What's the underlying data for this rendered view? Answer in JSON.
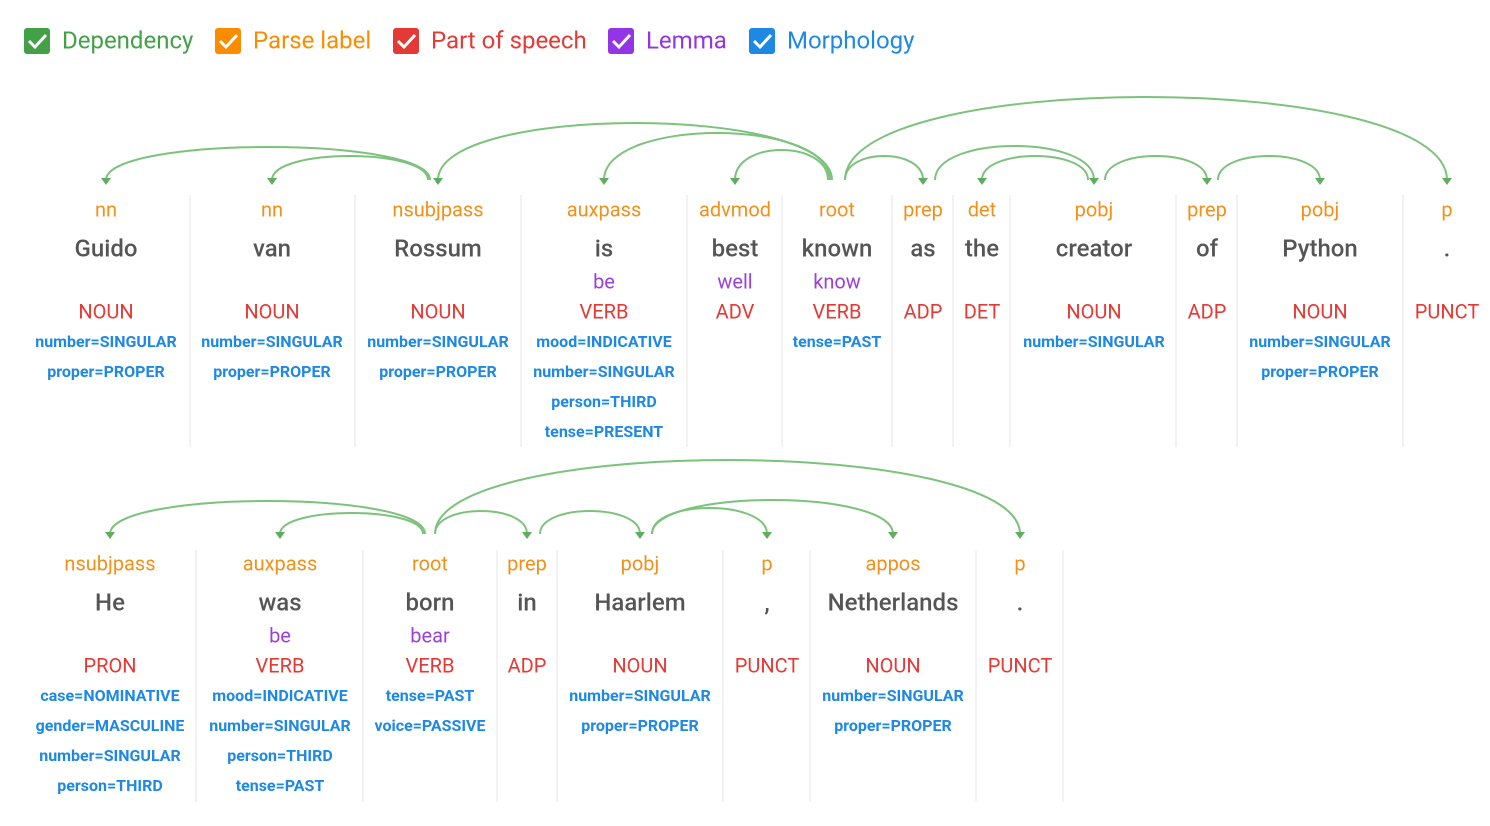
{
  "toolbar": {
    "options": [
      "Dependency",
      "Parse label",
      "Part of speech",
      "Lemma",
      "Morphology"
    ]
  },
  "sentences": [
    {
      "tokens": [
        {
          "label": "nn",
          "word": "Guido",
          "pos": "NOUN",
          "morphology": [
            "number=SINGULAR",
            "proper=PROPER"
          ]
        },
        {
          "label": "nn",
          "word": "van",
          "pos": "NOUN",
          "morphology": [
            "number=SINGULAR",
            "proper=PROPER"
          ]
        },
        {
          "label": "nsubjpass",
          "word": "Rossum",
          "pos": "NOUN",
          "morphology": [
            "number=SINGULAR",
            "proper=PROPER"
          ]
        },
        {
          "label": "auxpass",
          "word": "is",
          "lemma": "be",
          "pos": "VERB",
          "morphology": [
            "mood=INDICATIVE",
            "number=SINGULAR",
            "person=THIRD",
            "tense=PRESENT"
          ]
        },
        {
          "label": "advmod",
          "word": "best",
          "lemma": "well",
          "pos": "ADV",
          "morphology": []
        },
        {
          "label": "root",
          "word": "known",
          "lemma": "know",
          "pos": "VERB",
          "morphology": [
            "tense=PAST"
          ]
        },
        {
          "label": "prep",
          "word": "as",
          "pos": "ADP",
          "morphology": []
        },
        {
          "label": "det",
          "word": "the",
          "pos": "DET",
          "morphology": []
        },
        {
          "label": "pobj",
          "word": "creator",
          "pos": "NOUN",
          "morphology": [
            "number=SINGULAR"
          ]
        },
        {
          "label": "prep",
          "word": "of",
          "pos": "ADP",
          "morphology": []
        },
        {
          "label": "pobj",
          "word": "Python",
          "pos": "NOUN",
          "morphology": [
            "number=SINGULAR",
            "proper=PROPER"
          ]
        },
        {
          "label": "p",
          "word": ".",
          "pos": "PUNCT",
          "morphology": []
        }
      ]
    },
    {
      "tokens": [
        {
          "label": "nsubjpass",
          "word": "He",
          "pos": "PRON",
          "morphology": [
            "case=NOMINATIVE",
            "gender=MASCULINE",
            "number=SINGULAR",
            "person=THIRD"
          ]
        },
        {
          "label": "auxpass",
          "word": "was",
          "lemma": "be",
          "pos": "VERB",
          "morphology": [
            "mood=INDICATIVE",
            "number=SINGULAR",
            "person=THIRD",
            "tense=PAST"
          ]
        },
        {
          "label": "root",
          "word": "born",
          "lemma": "bear",
          "pos": "VERB",
          "morphology": [
            "tense=PAST",
            "voice=PASSIVE"
          ]
        },
        {
          "label": "prep",
          "word": "in",
          "pos": "ADP",
          "morphology": []
        },
        {
          "label": "pobj",
          "word": "Haarlem",
          "pos": "NOUN",
          "morphology": [
            "number=SINGULAR",
            "proper=PROPER"
          ]
        },
        {
          "label": "p",
          "word": ",",
          "pos": "PUNCT",
          "morphology": []
        },
        {
          "label": "appos",
          "word": "Netherlands",
          "pos": "NOUN",
          "morphology": [
            "number=SINGULAR",
            "proper=PROPER"
          ]
        },
        {
          "label": "p",
          "word": ".",
          "pos": "PUNCT",
          "morphology": []
        }
      ]
    }
  ]
}
